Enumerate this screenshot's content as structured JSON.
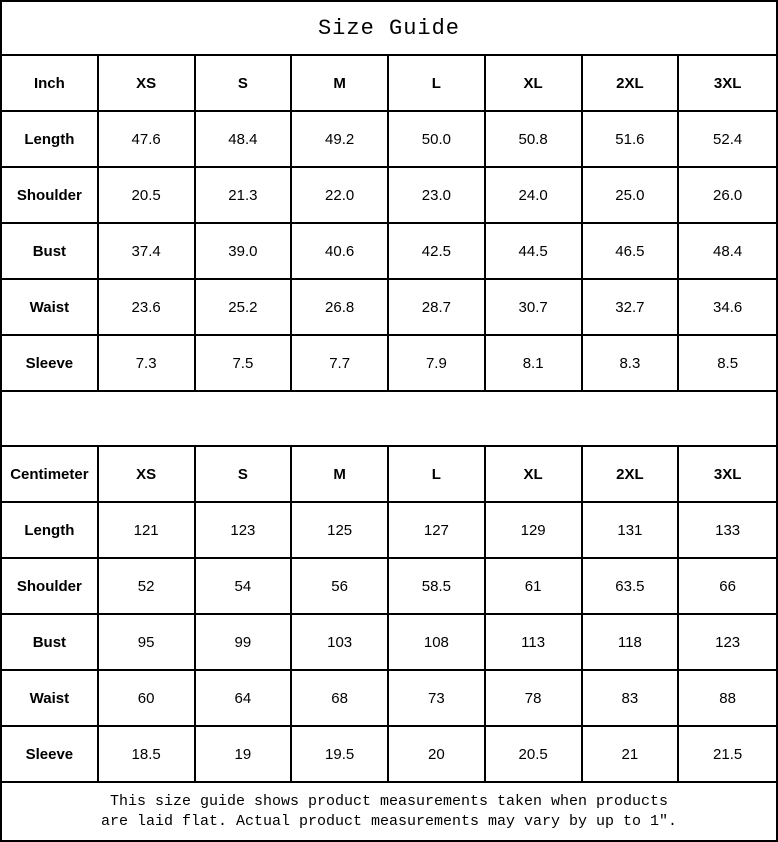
{
  "title": "Size Guide",
  "sizes": [
    "XS",
    "S",
    "M",
    "L",
    "XL",
    "2XL",
    "3XL"
  ],
  "inch_table": {
    "unit_label": "Inch",
    "rows": [
      {
        "label": "Length",
        "values": [
          "47.6",
          "48.4",
          "49.2",
          "50.0",
          "50.8",
          "51.6",
          "52.4"
        ]
      },
      {
        "label": "Shoulder",
        "values": [
          "20.5",
          "21.3",
          "22.0",
          "23.0",
          "24.0",
          "25.0",
          "26.0"
        ]
      },
      {
        "label": "Bust",
        "values": [
          "37.4",
          "39.0",
          "40.6",
          "42.5",
          "44.5",
          "46.5",
          "48.4"
        ]
      },
      {
        "label": "Waist",
        "values": [
          "23.6",
          "25.2",
          "26.8",
          "28.7",
          "30.7",
          "32.7",
          "34.6"
        ]
      },
      {
        "label": "Sleeve",
        "values": [
          "7.3",
          "7.5",
          "7.7",
          "7.9",
          "8.1",
          "8.3",
          "8.5"
        ]
      }
    ]
  },
  "cm_table": {
    "unit_label": "Centimeter",
    "rows": [
      {
        "label": "Length",
        "values": [
          "121",
          "123",
          "125",
          "127",
          "129",
          "131",
          "133"
        ]
      },
      {
        "label": "Shoulder",
        "values": [
          "52",
          "54",
          "56",
          "58.5",
          "61",
          "63.5",
          "66"
        ]
      },
      {
        "label": "Bust",
        "values": [
          "95",
          "99",
          "103",
          "108",
          "113",
          "118",
          "123"
        ]
      },
      {
        "label": "Waist",
        "values": [
          "60",
          "64",
          "68",
          "73",
          "78",
          "83",
          "88"
        ]
      },
      {
        "label": "Sleeve",
        "values": [
          "18.5",
          "19",
          "19.5",
          "20",
          "20.5",
          "21",
          "21.5"
        ]
      }
    ]
  },
  "footer": {
    "line1": "This size guide shows product measurements taken when products",
    "line2": "are laid flat. Actual product measurements may vary by up to 1″."
  },
  "colors": {
    "border": "#000000",
    "background": "#ffffff",
    "text": "#000000"
  }
}
